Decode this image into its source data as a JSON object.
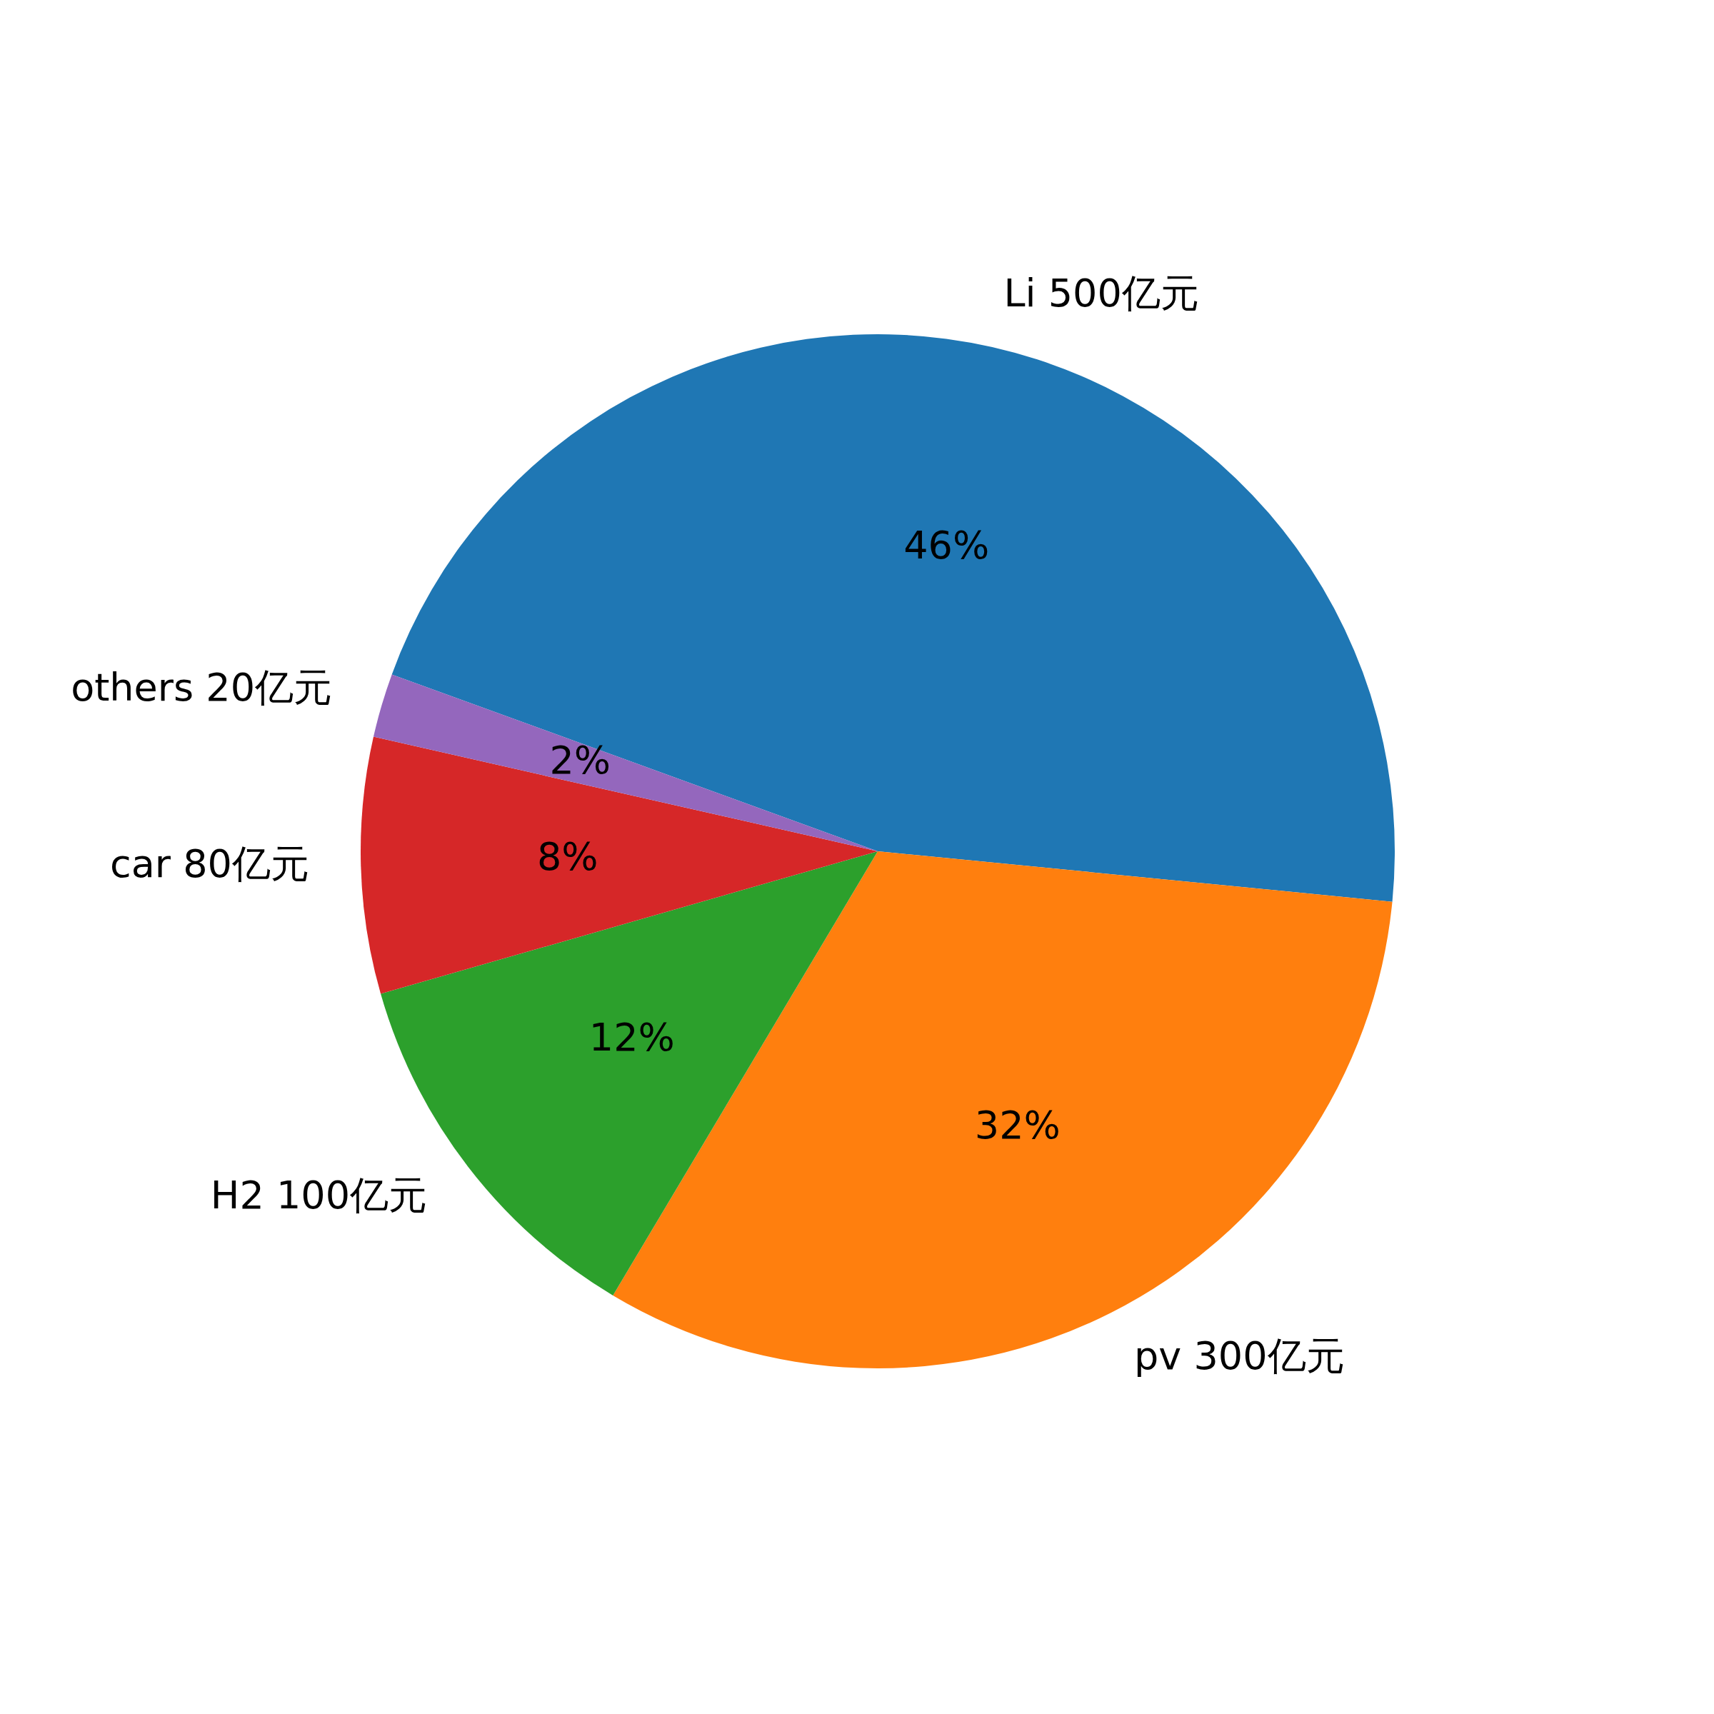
{
  "chart_data": {
    "type": "pie",
    "categories": [
      "Li 500亿元",
      "pv 300亿元",
      "H2 100亿元",
      "car 80亿元",
      "others 20亿元"
    ],
    "values": [
      46,
      32,
      12,
      8,
      2
    ],
    "value_labels": [
      "46%",
      "32%",
      "12%",
      "8%",
      "2%"
    ],
    "colors": [
      "#1f77b4",
      "#ff7f0e",
      "#2ca02c",
      "#d62728",
      "#9467bd"
    ]
  }
}
